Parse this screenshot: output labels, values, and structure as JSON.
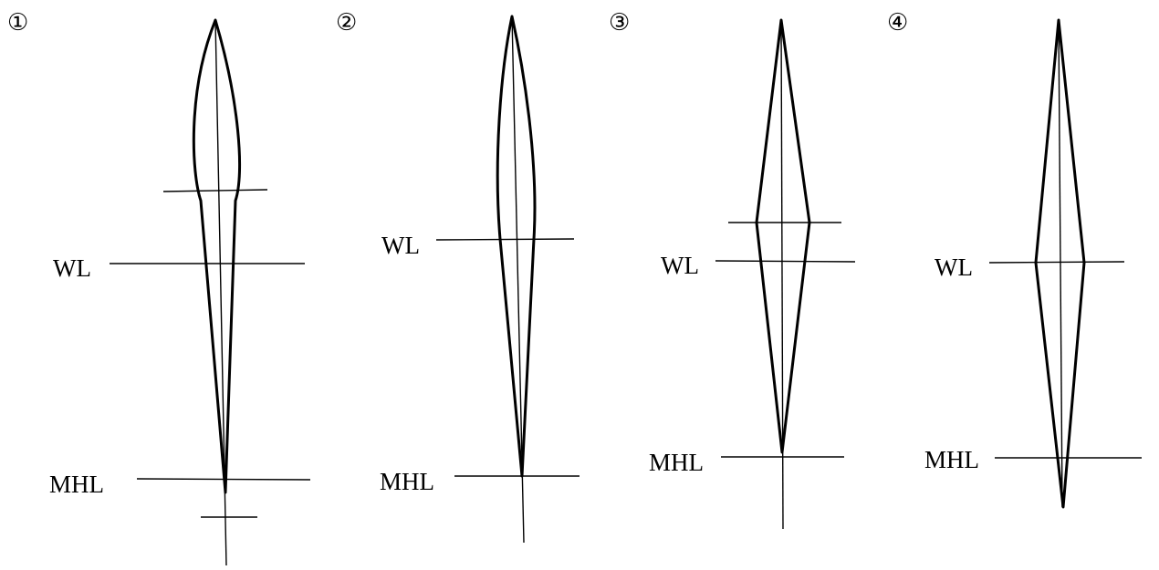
{
  "figures": [
    {
      "number": "①",
      "waterline_label": "WL",
      "mhl_label": "MHL"
    },
    {
      "number": "②",
      "waterline_label": "WL",
      "mhl_label": "MHL"
    },
    {
      "number": "③",
      "waterline_label": "WL",
      "mhl_label": "MHL"
    },
    {
      "number": "④",
      "waterline_label": "WL",
      "mhl_label": "MHL"
    }
  ]
}
